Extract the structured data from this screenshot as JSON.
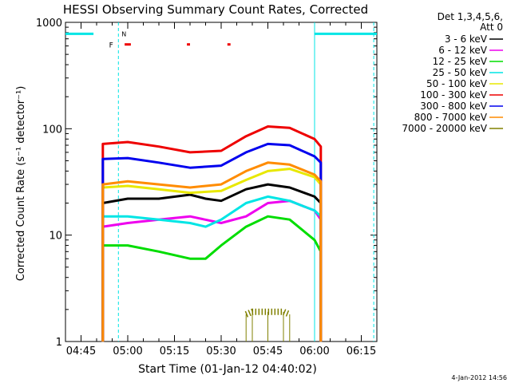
{
  "chart_data": {
    "type": "line",
    "title": "HESSI Observing Summary Count Rates, Corrected",
    "xlabel": "Start Time (01-Jan-12 04:40:02)",
    "ylabel": "Corrected Count Rate (s⁻¹ detector⁻¹)",
    "y_scale": "log",
    "ylim": [
      1,
      1000
    ],
    "xlim": [
      "04:40",
      "06:20"
    ],
    "x_ticks": [
      "04:45",
      "05:00",
      "05:15",
      "05:30",
      "05:45",
      "06:00",
      "06:15"
    ],
    "y_ticks": [
      "1",
      "10",
      "100",
      "1000"
    ],
    "legend_header": [
      "Det 1,3,4,5,6,",
      "Att 0"
    ],
    "timestamp": "4-Jan-2012 14:56",
    "data_start": "04:52",
    "data_end": "06:02",
    "series": [
      {
        "name": "3 - 6 keV",
        "color": "#000000",
        "x": [
          "04:52",
          "05:00",
          "05:10",
          "05:20",
          "05:25",
          "05:30",
          "05:38",
          "05:45",
          "05:52",
          "06:00",
          "06:02"
        ],
        "values": [
          20,
          22,
          22,
          24,
          22,
          21,
          27,
          30,
          28,
          23,
          20
        ]
      },
      {
        "name": "6 - 12 keV",
        "color": "#ee00ee",
        "x": [
          "04:52",
          "05:00",
          "05:10",
          "05:20",
          "05:30",
          "05:38",
          "05:45",
          "05:52",
          "06:00",
          "06:02"
        ],
        "values": [
          12,
          13,
          14,
          15,
          13,
          15,
          20,
          21,
          17,
          14
        ]
      },
      {
        "name": "12 - 25 keV",
        "color": "#00dd00",
        "x": [
          "04:52",
          "05:00",
          "05:10",
          "05:20",
          "05:25",
          "05:30",
          "05:38",
          "05:45",
          "05:52",
          "06:00",
          "06:02"
        ],
        "values": [
          8,
          8,
          7,
          6,
          6,
          8,
          12,
          15,
          14,
          9,
          7
        ]
      },
      {
        "name": "25 - 50 keV",
        "color": "#00e5e5",
        "x": [
          "04:52",
          "05:00",
          "05:10",
          "05:20",
          "05:25",
          "05:30",
          "05:38",
          "05:45",
          "05:52",
          "06:00",
          "06:02"
        ],
        "values": [
          15,
          15,
          14,
          13,
          12,
          14,
          20,
          23,
          21,
          17,
          15
        ]
      },
      {
        "name": "50 - 100 keV",
        "color": "#e8e800",
        "x": [
          "04:52",
          "05:00",
          "05:10",
          "05:20",
          "05:30",
          "05:38",
          "05:45",
          "05:52",
          "06:00",
          "06:02"
        ],
        "values": [
          28,
          29,
          27,
          25,
          26,
          33,
          40,
          42,
          35,
          30
        ]
      },
      {
        "name": "100 - 300 keV",
        "color": "#ee0000",
        "x": [
          "04:52",
          "05:00",
          "05:10",
          "05:20",
          "05:30",
          "05:38",
          "05:45",
          "05:52",
          "06:00",
          "06:02"
        ],
        "values": [
          72,
          75,
          68,
          60,
          62,
          85,
          105,
          102,
          80,
          68
        ]
      },
      {
        "name": "300 - 800 keV",
        "color": "#0000ee",
        "x": [
          "04:52",
          "05:00",
          "05:10",
          "05:20",
          "05:30",
          "05:38",
          "05:45",
          "05:52",
          "06:00",
          "06:02"
        ],
        "values": [
          52,
          53,
          48,
          43,
          45,
          60,
          72,
          70,
          55,
          48
        ]
      },
      {
        "name": "800 - 7000 keV",
        "color": "#ff8c00",
        "x": [
          "04:52",
          "05:00",
          "05:10",
          "05:20",
          "05:30",
          "05:38",
          "05:45",
          "05:52",
          "06:00",
          "06:02"
        ],
        "values": [
          30,
          32,
          30,
          28,
          30,
          40,
          48,
          46,
          37,
          32
        ]
      },
      {
        "name": "7000 - 20000 keV",
        "color": "#808000",
        "x": [
          "05:38",
          "05:40",
          "05:45",
          "05:50",
          "05:52"
        ],
        "values": [
          1.8,
          1.9,
          1.9,
          1.9,
          1.8
        ]
      }
    ],
    "markers": {
      "saa_level": 780,
      "saa_cyan": [
        [
          "04:40",
          "04:49"
        ],
        [
          "06:00",
          "06:20"
        ]
      ],
      "night_lines": [
        "04:57",
        "06:00",
        "06:19"
      ],
      "flare_bars": [
        [
          "04:59",
          "05:01"
        ],
        [
          "05:19",
          "05:20"
        ],
        [
          "05:32",
          "05:33"
        ]
      ],
      "flag_f_label": "F",
      "flag_n_label": "N"
    }
  }
}
